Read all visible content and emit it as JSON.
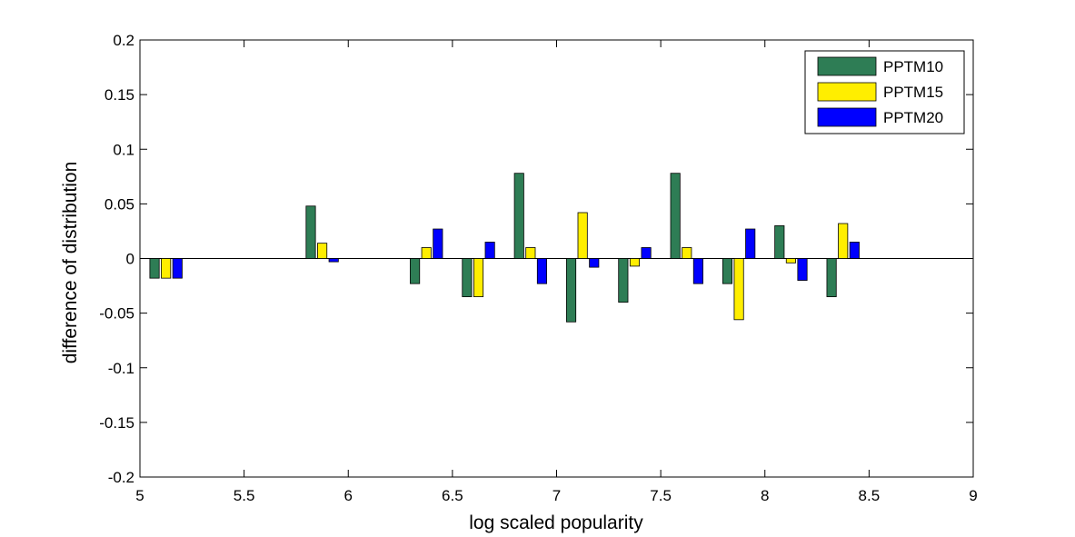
{
  "chart_data": {
    "type": "bar",
    "xlabel": "log scaled popularity",
    "ylabel": "difference of distribution",
    "xlim": [
      5,
      9
    ],
    "ylim": [
      -0.2,
      0.2
    ],
    "xticks": [
      "5",
      "5.5",
      "6",
      "6.5",
      "7",
      "7.5",
      "8",
      "8.5",
      "9"
    ],
    "yticks": [
      "-0.2",
      "-0.15",
      "-0.1",
      "-0.05",
      "0",
      "0.05",
      "0.1",
      "0.15",
      "0.2"
    ],
    "grid": false,
    "legend_position": "top-right",
    "x": [
      5.125,
      5.875,
      6.375,
      6.625,
      6.875,
      7.125,
      7.375,
      7.625,
      7.875,
      8.125,
      8.375
    ],
    "series": [
      {
        "name": "PPTM10",
        "color": "#2e7d55",
        "values": [
          -0.018,
          0.048,
          -0.023,
          -0.035,
          0.078,
          -0.058,
          -0.04,
          0.078,
          -0.023,
          0.03,
          -0.035
        ]
      },
      {
        "name": "PPTM15",
        "color": "#ffee00",
        "values": [
          -0.018,
          0.014,
          0.01,
          -0.035,
          0.01,
          0.042,
          -0.007,
          0.01,
          -0.056,
          -0.004,
          0.032
        ]
      },
      {
        "name": "PPTM20",
        "color": "#0000ff",
        "values": [
          -0.018,
          -0.003,
          0.027,
          0.015,
          -0.023,
          -0.008,
          0.01,
          -0.023,
          0.027,
          -0.02,
          0.015
        ]
      }
    ]
  }
}
